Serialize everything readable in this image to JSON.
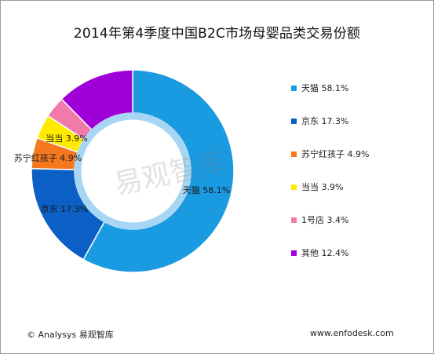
{
  "chart_data": {
    "type": "pie",
    "variant": "donut",
    "title": "2014年第4季度中国B2C市场母婴品类交易份额",
    "categories": [
      "天猫",
      "京东",
      "苏宁红孩子",
      "当当",
      "1号店",
      "其他"
    ],
    "values": [
      58.1,
      17.3,
      4.9,
      3.9,
      3.4,
      12.4
    ],
    "unit": "%",
    "data_labels": [
      "天猫 58.1%",
      "京东 17.3%",
      "苏宁红孩子 4.9%",
      "当当 3.9%",
      "",
      ""
    ],
    "colors": [
      "#1a9ae0",
      "#0b5fc5",
      "#f5781f",
      "#ffea00",
      "#f07aaa",
      "#a000d8"
    ],
    "legend_position": "right",
    "legend": [
      {
        "label": "天猫 58.1%",
        "color": "#1a9ae0"
      },
      {
        "label": "京东 17.3%",
        "color": "#0b5fc5"
      },
      {
        "label": "苏宁红孩子 4.9%",
        "color": "#f5781f"
      },
      {
        "label": "当当 3.9%",
        "color": "#ffea00"
      },
      {
        "label": "1号店 3.4%",
        "color": "#f07aaa"
      },
      {
        "label": "其他 12.4%",
        "color": "#a000d8"
      }
    ]
  },
  "watermark": "易观智库",
  "footer": {
    "source": "© Analysys 易观智库",
    "website": "www.enfodesk.com"
  }
}
